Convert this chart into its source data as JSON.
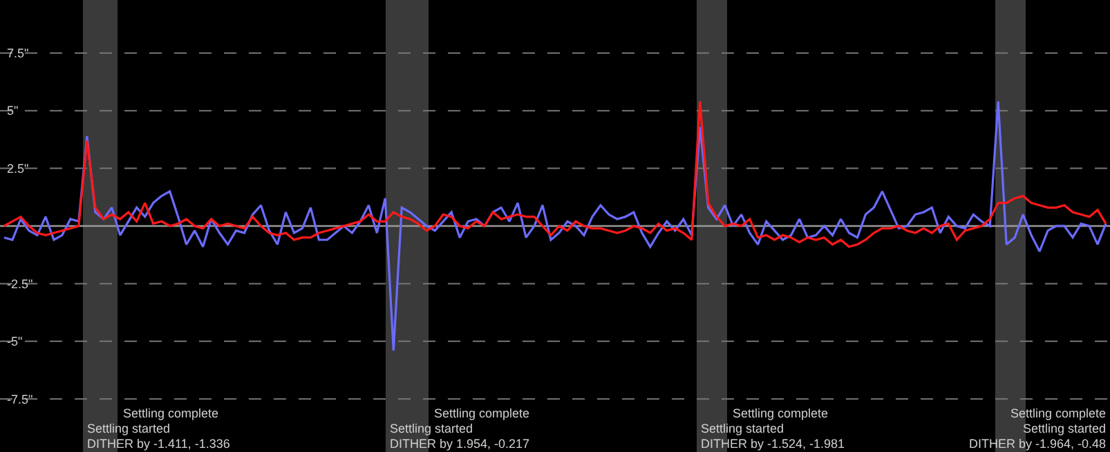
{
  "chart_data": {
    "type": "line",
    "ylim": [
      -9.8,
      9.8
    ],
    "tick_labels": "y",
    "grid": "y",
    "line_style": "solid",
    "yticks": [
      {
        "value": -7.5,
        "label": "-7.5\""
      },
      {
        "value": -5,
        "label": "-5\""
      },
      {
        "value": -2.5,
        "label": "-2.5\""
      },
      {
        "value": 2.5,
        "label": "2.5\""
      },
      {
        "value": 5,
        "label": "5\""
      },
      {
        "value": 7.5,
        "label": "7.5\""
      }
    ],
    "categories": [
      null,
      null,
      null,
      null,
      null,
      null,
      null,
      null,
      null,
      null,
      null,
      null,
      null,
      null,
      null,
      null,
      null,
      null,
      null,
      null,
      null,
      null,
      null,
      null,
      null,
      null,
      null,
      null,
      null,
      null,
      null,
      null,
      null,
      null,
      null,
      null,
      null,
      null,
      null,
      null,
      null,
      null,
      null,
      null,
      null,
      null,
      null,
      null,
      null,
      null,
      null,
      null,
      null,
      null,
      null,
      null,
      null,
      null,
      null,
      null,
      null,
      null,
      null,
      null,
      null,
      null,
      null,
      null,
      null,
      null,
      null,
      null,
      null,
      null,
      null,
      null,
      null,
      null,
      null,
      null,
      null,
      null,
      null,
      null,
      null,
      null,
      null,
      null,
      null,
      null,
      null,
      null,
      null,
      null,
      null,
      null,
      null,
      null,
      null,
      null,
      null,
      null,
      null,
      null,
      null,
      null,
      null,
      null,
      null,
      null,
      null,
      null,
      null,
      null,
      null,
      null,
      null,
      null,
      null,
      null,
      null,
      null,
      null,
      null,
      null,
      null,
      null,
      null,
      null,
      null,
      null,
      null,
      null,
      null
    ],
    "series": [
      {
        "color": "#6b6bff",
        "values": [
          -0.5,
          -0.6,
          0.3,
          -0.2,
          -0.4,
          0.4,
          -0.6,
          -0.4,
          0.3,
          0.2,
          3.9,
          0.6,
          0.3,
          0.8,
          -0.4,
          0.2,
          0.8,
          0.4,
          1.0,
          1.3,
          1.5,
          0.4,
          -0.8,
          -0.2,
          -0.9,
          0.3,
          -0.3,
          -0.8,
          -0.2,
          -0.3,
          0.5,
          0.9,
          -0.2,
          -0.8,
          0.6,
          -0.3,
          -0.1,
          0.8,
          -0.6,
          -0.6,
          -0.3,
          0.0,
          -0.3,
          0.2,
          0.9,
          -0.3,
          1.2,
          -5.4,
          0.8,
          0.6,
          0.3,
          0.0,
          -0.2,
          0.2,
          0.6,
          -0.5,
          0.2,
          0.3,
          0.0,
          0.6,
          0.8,
          0.2,
          1.0,
          -0.5,
          0.0,
          0.9,
          -0.6,
          -0.3,
          0.2,
          0.0,
          -0.4,
          0.4,
          0.9,
          0.5,
          0.3,
          0.4,
          0.6,
          -0.3,
          -0.9,
          -0.3,
          0.2,
          -0.2,
          0.3,
          -0.4,
          4.3,
          0.8,
          0.3,
          0.9,
          0.0,
          0.5,
          -0.3,
          -0.8,
          0.2,
          -0.2,
          -0.6,
          -0.4,
          0.3,
          -0.5,
          -0.4,
          0.0,
          -0.4,
          0.3,
          -0.3,
          -0.5,
          0.5,
          0.8,
          1.5,
          0.7,
          -0.1,
          0.0,
          0.5,
          0.6,
          0.8,
          -0.3,
          0.4,
          0.0,
          -0.1,
          0.5,
          0.2,
          0.0,
          5.4,
          -0.8,
          -0.5,
          0.5,
          -0.4,
          -1.1,
          -0.2,
          0.0,
          0.0,
          -0.5,
          0.1,
          0.0,
          -0.8,
          0.1
        ]
      },
      {
        "color": "#ff1a1a",
        "values": [
          0.0,
          0.2,
          0.4,
          0.0,
          -0.3,
          -0.4,
          -0.3,
          -0.2,
          -0.1,
          0.0,
          3.7,
          0.8,
          0.3,
          0.5,
          0.3,
          0.6,
          0.2,
          1.0,
          0.1,
          0.2,
          0.0,
          0.1,
          0.3,
          0.0,
          -0.1,
          0.3,
          0.0,
          0.1,
          0.0,
          -0.1,
          0.4,
          0.0,
          -0.3,
          -0.4,
          -0.3,
          -0.6,
          -0.5,
          -0.5,
          -0.3,
          -0.2,
          -0.1,
          0.0,
          0.1,
          0.2,
          0.5,
          0.2,
          0.2,
          0.6,
          0.4,
          0.3,
          0.1,
          -0.2,
          0.0,
          0.5,
          0.4,
          0.0,
          -0.1,
          0.2,
          0.0,
          0.6,
          0.3,
          0.4,
          0.5,
          0.4,
          0.4,
          0.0,
          -0.4,
          0.0,
          -0.2,
          0.2,
          0.0,
          -0.1,
          -0.1,
          -0.2,
          -0.3,
          -0.2,
          0.0,
          -0.1,
          -0.3,
          0.1,
          -0.2,
          -0.1,
          -0.3,
          -0.6,
          5.4,
          1.0,
          0.4,
          0.0,
          0.1,
          0.0,
          0.3,
          -0.5,
          -0.4,
          -0.6,
          -0.4,
          -0.5,
          -0.7,
          -0.5,
          -0.6,
          -0.5,
          -0.8,
          -0.6,
          -0.9,
          -0.8,
          -0.6,
          -0.3,
          -0.1,
          -0.1,
          0.0,
          -0.2,
          -0.3,
          -0.1,
          -0.3,
          0.0,
          0.1,
          -0.6,
          -0.2,
          -0.1,
          0.0,
          0.3,
          1.0,
          1.0,
          1.2,
          1.3,
          1.0,
          0.9,
          0.8,
          0.8,
          0.9,
          0.6,
          0.5,
          0.4,
          0.7,
          0.1
        ]
      }
    ],
    "ref_lines": [
      {
        "axis": "y",
        "value": 0,
        "color": "#9a9a9a"
      }
    ],
    "annotations": [
      "Settling complete",
      "Settling started",
      "DITHER by -1.411, -1.336",
      "Settling complete",
      "Settling started",
      "DITHER by 1.954, -0.217",
      "Settling complete",
      "Settling started",
      "DITHER by -1.524, -1.981",
      "Settling complete",
      "Settling started",
      "DITHER by -1.964, -0.48"
    ]
  }
}
